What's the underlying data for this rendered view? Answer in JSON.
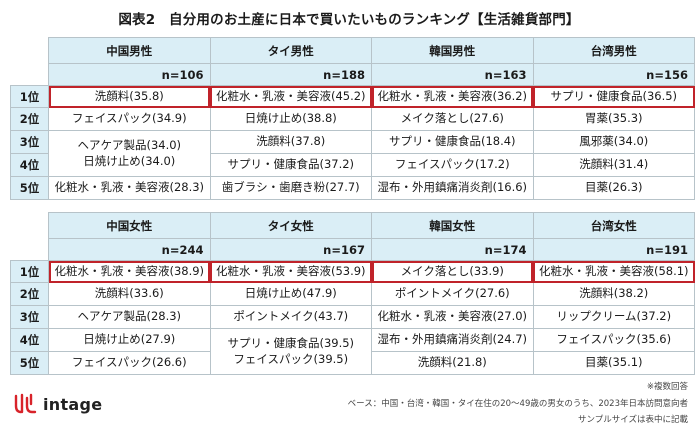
{
  "title": "図表2　自分用のお土産に日本で買いたいものランキング【生活雑貨部門】",
  "male": {
    "headers": [
      "中国男性",
      "タイ男性",
      "韓国男性",
      "台湾男性"
    ],
    "n": [
      "n=106",
      "n=188",
      "n=163",
      "n=156"
    ],
    "ranks": [
      "1位",
      "2位",
      "3位",
      "4位",
      "5位"
    ],
    "rank1": [
      "洗顔料(35.8)",
      "化粧水・乳液・美容液(45.2)",
      "化粧水・乳液・美容液(36.2)",
      "サプリ・健康食品(36.5)"
    ],
    "rank2": [
      "フェイスパック(34.9)",
      "日焼け止め(38.8)",
      "メイク落とし(27.6)",
      "胃薬(35.3)"
    ],
    "rank34_china": [
      "ヘアケア製品(34.0)",
      "日焼け止め(34.0)"
    ],
    "rank3": [
      "洗顔料(37.8)",
      "サプリ・健康食品(18.4)",
      "風邪薬(34.0)"
    ],
    "rank4": [
      "サプリ・健康食品(37.2)",
      "フェイスパック(17.2)",
      "洗顔料(31.4)"
    ],
    "rank5": [
      "化粧水・乳液・美容液(28.3)",
      "歯ブラシ・歯磨き粉(27.7)",
      "湿布・外用鎮痛消炎剤(16.6)",
      "目薬(26.3)"
    ]
  },
  "female": {
    "headers": [
      "中国女性",
      "タイ女性",
      "韓国女性",
      "台湾女性"
    ],
    "n": [
      "n=244",
      "n=167",
      "n=174",
      "n=191"
    ],
    "ranks": [
      "1位",
      "2位",
      "3位",
      "4位",
      "5位"
    ],
    "rank1": [
      "化粧水・乳液・美容液(38.9)",
      "化粧水・乳液・美容液(53.9)",
      "メイク落とし(33.9)",
      "化粧水・乳液・美容液(58.1)"
    ],
    "rank2": [
      "洗顔料(33.6)",
      "日焼け止め(47.9)",
      "ポイントメイク(27.6)",
      "洗顔料(38.2)"
    ],
    "rank3": [
      "ヘアケア製品(28.3)",
      "ポイントメイク(43.7)",
      "化粧水・乳液・美容液(27.0)",
      "リップクリーム(37.2)"
    ],
    "rank4": [
      "日焼け止め(27.9)",
      "湿布・外用鎮痛消炎剤(24.7)",
      "フェイスパック(35.6)"
    ],
    "rank45_thai": [
      "サプリ・健康食品(39.5)",
      "フェイスパック(39.5)"
    ],
    "rank5": [
      "フェイスパック(26.6)",
      "洗顔料(21.8)",
      "目薬(35.1)"
    ]
  },
  "notes": {
    "multiple": "※複数回答",
    "base": "ベース：中国・台湾・韓国・タイ在住の20～49歳の男女のうち、2023年日本訪問意向者",
    "sample": "サンプルサイズは表中に記載"
  },
  "logo": {
    "text": "intage",
    "mark_icon": "intage-logo-mark"
  },
  "colors": {
    "header_bg": "#daeef6",
    "highlight": "#c0232a",
    "border": "#b7c3c9"
  }
}
